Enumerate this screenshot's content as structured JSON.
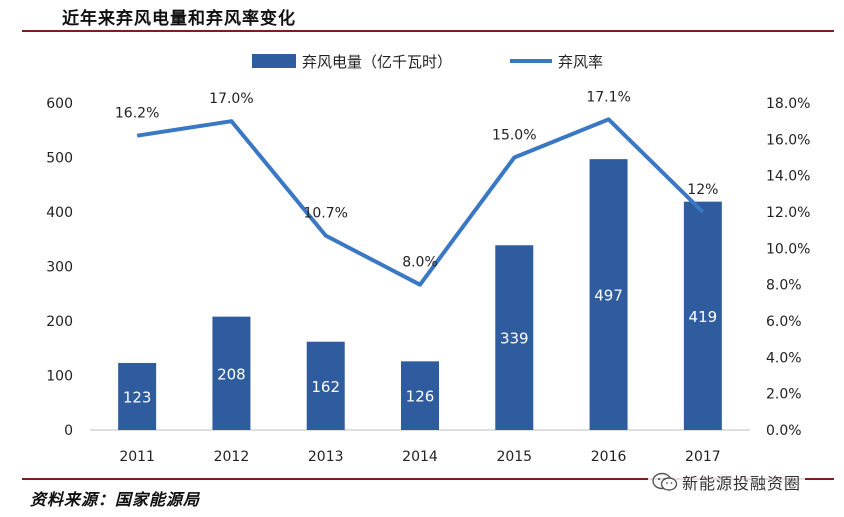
{
  "page": {
    "title": "近年来弃风电量和弃风率变化",
    "source": "资料来源：国家能源局",
    "watermark": "新能源投融资圈"
  },
  "chart_data": {
    "type": "bar",
    "categories": [
      "2011",
      "2012",
      "2013",
      "2014",
      "2015",
      "2016",
      "2017"
    ],
    "series": [
      {
        "name": "弃风电量（亿千瓦时）",
        "type": "bar",
        "axis": "left",
        "values": [
          123,
          208,
          162,
          126,
          339,
          497,
          419
        ],
        "labels": [
          "123",
          "208",
          "162",
          "126",
          "339",
          "497",
          "419"
        ]
      },
      {
        "name": "弃风率",
        "type": "line",
        "axis": "right",
        "values": [
          16.2,
          17.0,
          10.7,
          8.0,
          15.0,
          17.1,
          12.0
        ],
        "labels": [
          "16.2%",
          "17.0%",
          "10.7%",
          "8.0%",
          "15.0%",
          "17.1%",
          "12%"
        ]
      }
    ],
    "left_axis": {
      "ylim": [
        0,
        600
      ],
      "ticks": [
        "0",
        "100",
        "200",
        "300",
        "400",
        "500",
        "600"
      ]
    },
    "right_axis": {
      "ylim": [
        0,
        18
      ],
      "ticks": [
        "0.0%",
        "2.0%",
        "4.0%",
        "6.0%",
        "8.0%",
        "10.0%",
        "12.0%",
        "14.0%",
        "16.0%",
        "18.0%"
      ]
    },
    "legend_position": "top",
    "grid": false,
    "colors": {
      "bar": "#2e5c9e",
      "line": "#3a78c4",
      "rule": "#7a1e1e"
    }
  }
}
